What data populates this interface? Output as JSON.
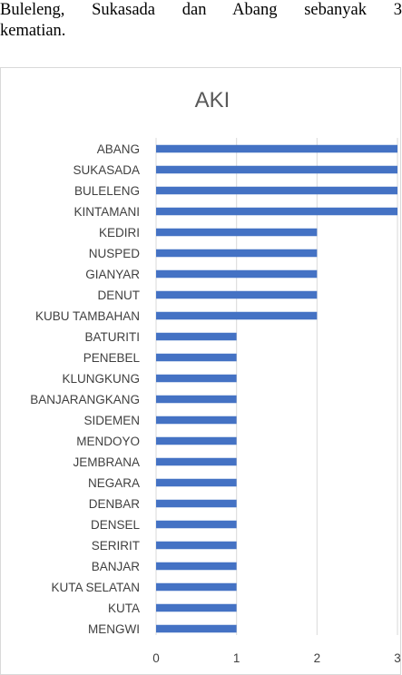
{
  "intro_text": {
    "line1": "Buleleng, Sukasada dan Abang sebanyak 3",
    "line2": "kematian."
  },
  "colors": {
    "bar": "#4472c4",
    "grid": "#d9d9d9",
    "text": "#404040"
  },
  "chart_data": {
    "type": "bar",
    "orientation": "horizontal",
    "title": "AKI",
    "xlabel": "",
    "ylabel": "",
    "categories": [
      "ABANG",
      "SUKASADA",
      "BULELENG",
      "KINTAMANI",
      "KEDIRI",
      "NUSPED",
      "GIANYAR",
      "DENUT",
      "KUBU TAMBAHAN",
      "BATURITI",
      "PENEBEL",
      "KLUNGKUNG",
      "BANJARANGKANG",
      "SIDEMEN",
      "MENDOYO",
      "JEMBRANA",
      "NEGARA",
      "DENBAR",
      "DENSEL",
      "SERIRIT",
      "BANJAR",
      "KUTA SELATAN",
      "KUTA",
      "MENGWI"
    ],
    "values": [
      3,
      3,
      3,
      3,
      2,
      2,
      2,
      2,
      2,
      1,
      1,
      1,
      1,
      1,
      1,
      1,
      1,
      1,
      1,
      1,
      1,
      1,
      1,
      1
    ],
    "xlim": [
      0,
      3
    ],
    "xticks": [
      "0",
      "1",
      "2",
      "3"
    ],
    "grid": true,
    "legend": "none"
  }
}
